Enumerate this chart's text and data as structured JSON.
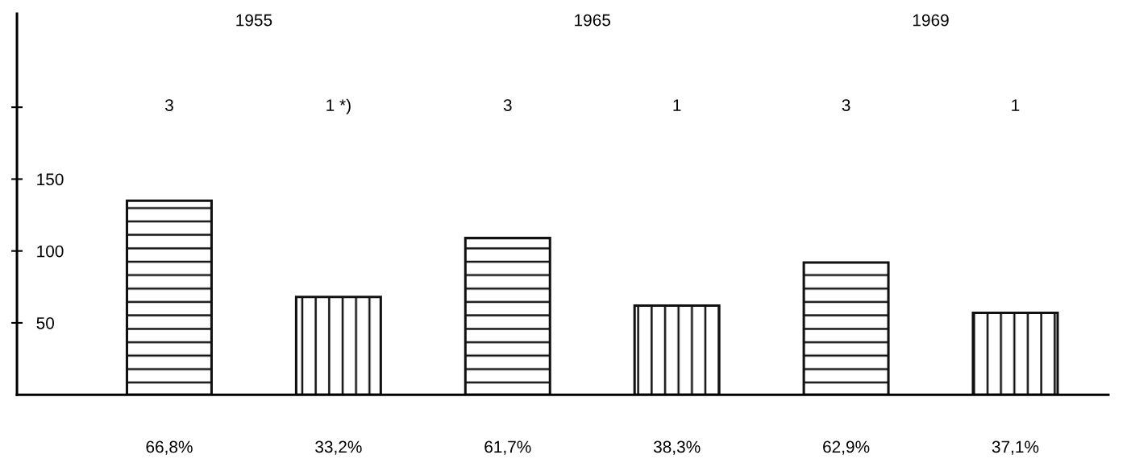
{
  "chart_data": {
    "type": "bar",
    "categories": [
      "3",
      "1 *)",
      "3",
      "1",
      "3",
      "1"
    ],
    "series": [
      {
        "color": "#111111",
        "values": [
          135,
          null,
          109,
          null,
          92,
          null
        ]
      },
      {
        "color": "#111111",
        "values": [
          null,
          68,
          null,
          62,
          null,
          57
        ]
      }
    ],
    "ylim": [
      0,
      265
    ],
    "yticks": [
      50,
      100,
      150,
      {
        "value": 200,
        "label": null
      }
    ],
    "annotations": [
      "1955",
      "1965",
      "1969",
      "66,8%",
      "33,2%",
      "61,7%",
      "38,3%",
      "62,9%",
      "37,1%"
    ],
    "grid": false,
    "legend": false
  }
}
